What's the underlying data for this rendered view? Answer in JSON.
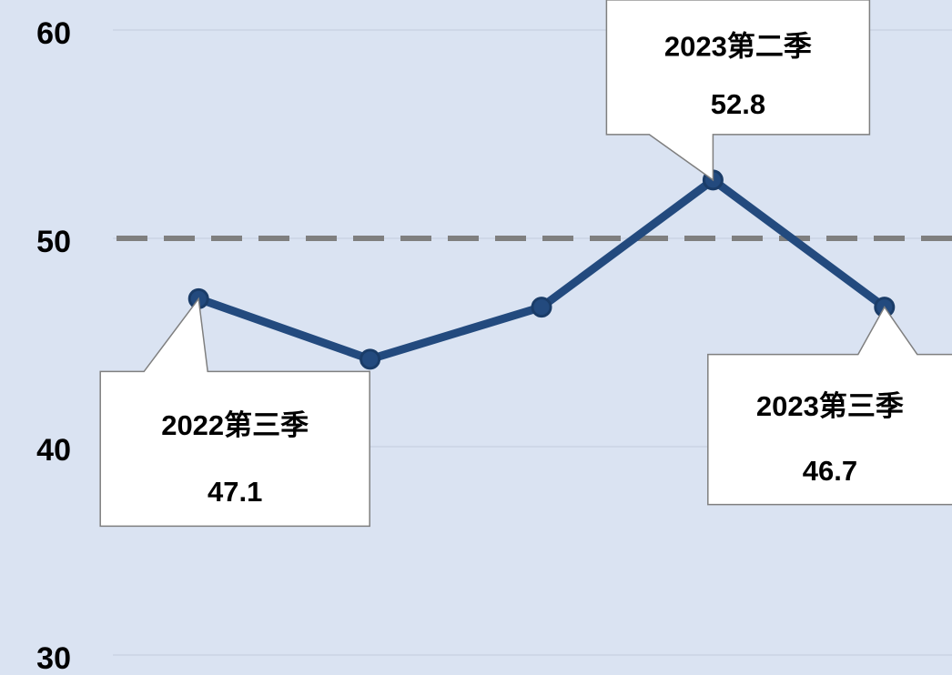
{
  "chart_data": {
    "type": "line",
    "categories": [
      "2022第三季",
      null,
      null,
      "2023第二季",
      "2023第三季"
    ],
    "series": [
      {
        "color": "#234a7e",
        "values": [
          47.1,
          44.2,
          46.7,
          52.8,
          46.7
        ]
      }
    ],
    "ylim": [
      30,
      60
    ],
    "yticks": [
      30,
      40,
      50,
      60
    ],
    "grid": true,
    "reference_line": {
      "value": 50,
      "color": "#7f7f7f"
    }
  }
}
